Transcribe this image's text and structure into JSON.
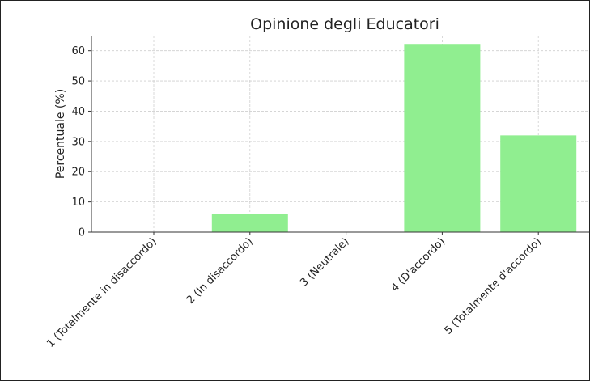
{
  "chart_data": {
    "type": "bar",
    "title": "Opinione degli Educatori",
    "xlabel": "",
    "ylabel": "Percentuale (%)",
    "categories": [
      "1 (Totalmente in disaccordo)",
      "2 (In disaccordo)",
      "3 (Neutrale)",
      "4 (D'accordo)",
      "5 (Totalmente d'accordo)"
    ],
    "values": [
      0,
      6,
      0,
      62,
      32
    ],
    "ylim": [
      0,
      65
    ],
    "yticks": [
      0,
      10,
      20,
      30,
      40,
      50,
      60
    ],
    "grid": true,
    "bar_color": "#90ee90"
  }
}
